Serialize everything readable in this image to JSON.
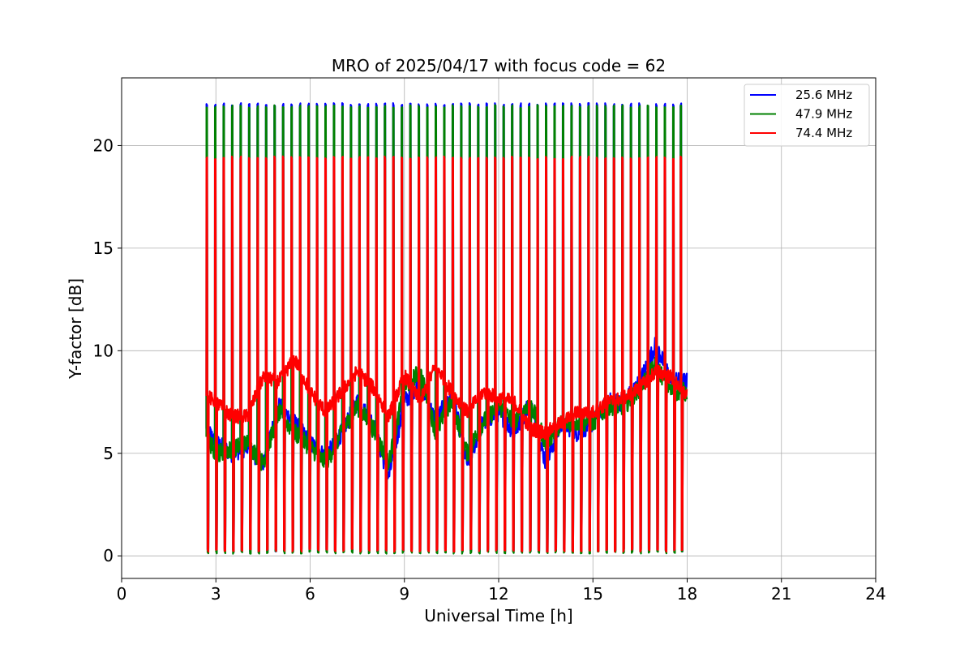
{
  "chart_data": {
    "type": "line",
    "title": "MRO of 2025/04/17 with focus code = 62",
    "xlabel": "Universal Time [h]",
    "ylabel": "Y-factor [dB]",
    "xlim": [
      0,
      24
    ],
    "ylim": [
      -1.1,
      23.3
    ],
    "xticks": [
      0,
      3,
      6,
      9,
      12,
      15,
      18,
      21,
      24
    ],
    "yticks": [
      0,
      5,
      10,
      15,
      20
    ],
    "grid": true,
    "legend_position": "top-right",
    "pulse_times_h": [
      2.7,
      2.97,
      3.24,
      3.51,
      3.78,
      4.05,
      4.32,
      4.59,
      4.86,
      5.13,
      5.4,
      5.67,
      5.94,
      6.21,
      6.48,
      6.75,
      7.02,
      7.29,
      7.56,
      7.83,
      8.1,
      8.37,
      8.64,
      8.91,
      9.18,
      9.45,
      9.72,
      9.99,
      10.26,
      10.53,
      10.8,
      11.07,
      11.34,
      11.61,
      11.88,
      12.15,
      12.42,
      12.69,
      12.96,
      13.23,
      13.5,
      13.77,
      14.04,
      14.31,
      14.58,
      14.85,
      15.12,
      15.39,
      15.66,
      15.93,
      16.2,
      16.47,
      16.74,
      17.01,
      17.28,
      17.55,
      17.79
    ],
    "x": [
      2.7,
      3.0,
      3.5,
      4.0,
      4.5,
      5.0,
      5.5,
      6.0,
      6.5,
      7.0,
      7.5,
      8.0,
      8.5,
      9.0,
      9.5,
      10.0,
      10.5,
      11.0,
      11.5,
      12.0,
      12.5,
      13.0,
      13.5,
      14.0,
      14.5,
      15.0,
      15.5,
      16.0,
      16.5,
      17.0,
      17.5,
      18.0
    ],
    "series": [
      {
        "name": "25.6 MHz",
        "color": "#0000ff",
        "peak": 22.0,
        "low": 0.2,
        "values": [
          6.2,
          5.5,
          5.0,
          5.3,
          4.5,
          7.3,
          6.5,
          5.5,
          4.8,
          6.0,
          7.5,
          6.5,
          3.8,
          7.5,
          8.5,
          6.5,
          8.0,
          4.5,
          6.5,
          7.0,
          6.0,
          7.5,
          4.5,
          6.5,
          6.0,
          6.5,
          7.5,
          7.5,
          8.5,
          10.3,
          8.5,
          8.5
        ]
      },
      {
        "name": "47.9 MHz",
        "color": "#008000",
        "peak": 21.9,
        "low": 0.1,
        "values": [
          5.8,
          5.0,
          5.2,
          5.5,
          4.5,
          7.0,
          6.0,
          5.3,
          4.5,
          6.0,
          7.3,
          6.2,
          4.5,
          8.2,
          9.0,
          6.0,
          7.5,
          5.0,
          6.5,
          7.3,
          6.5,
          7.5,
          5.5,
          6.5,
          6.5,
          6.5,
          7.3,
          7.3,
          8.2,
          9.3,
          8.0,
          8.0
        ]
      },
      {
        "name": "74.4 MHz",
        "color": "#ff0000",
        "peak": 19.4,
        "low": 0.2,
        "values": [
          7.8,
          7.5,
          6.8,
          6.8,
          8.7,
          8.5,
          9.6,
          8.0,
          7.0,
          8.0,
          9.0,
          8.2,
          6.8,
          8.8,
          7.5,
          9.3,
          8.0,
          7.0,
          8.0,
          7.7,
          7.5,
          6.2,
          6.0,
          6.5,
          7.0,
          7.0,
          7.5,
          7.7,
          8.2,
          9.0,
          8.7,
          7.8
        ]
      }
    ]
  }
}
